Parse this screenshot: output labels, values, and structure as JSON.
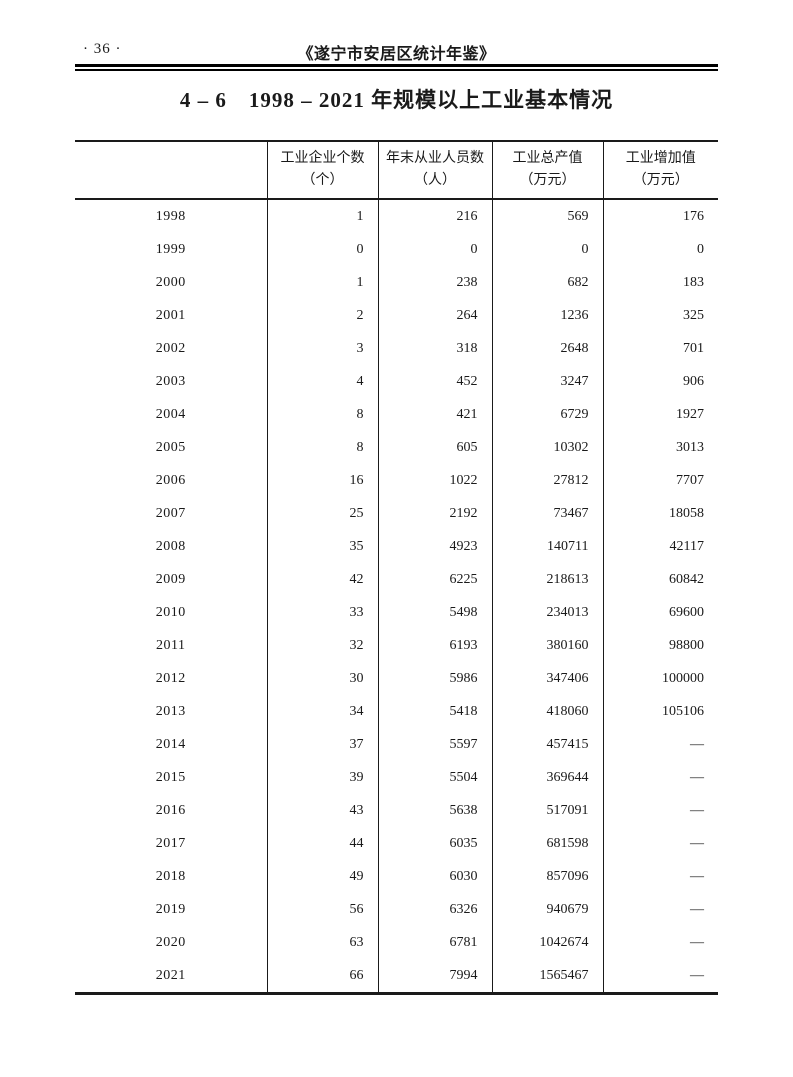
{
  "header": {
    "page_number": "· 36 ·",
    "book_title": "《遂宁市安居区统计年鉴》"
  },
  "title": "4 – 6　1998 – 2021 年规模以上工业基本情况",
  "table": {
    "year_column_header": "",
    "columns": [
      {
        "label": "工业企业个数",
        "unit": "（个）"
      },
      {
        "label": "年末从业人员数",
        "unit": "（人）"
      },
      {
        "label": "工业总产值",
        "unit": "（万元）"
      },
      {
        "label": "工业增加值",
        "unit": "（万元）"
      }
    ],
    "rows": [
      {
        "year": "1998",
        "values": [
          "1",
          "216",
          "569",
          "176"
        ]
      },
      {
        "year": "1999",
        "values": [
          "0",
          "0",
          "0",
          "0"
        ]
      },
      {
        "year": "2000",
        "values": [
          "1",
          "238",
          "682",
          "183"
        ]
      },
      {
        "year": "2001",
        "values": [
          "2",
          "264",
          "1236",
          "325"
        ]
      },
      {
        "year": "2002",
        "values": [
          "3",
          "318",
          "2648",
          "701"
        ]
      },
      {
        "year": "2003",
        "values": [
          "4",
          "452",
          "3247",
          "906"
        ]
      },
      {
        "year": "2004",
        "values": [
          "8",
          "421",
          "6729",
          "1927"
        ]
      },
      {
        "year": "2005",
        "values": [
          "8",
          "605",
          "10302",
          "3013"
        ]
      },
      {
        "year": "2006",
        "values": [
          "16",
          "1022",
          "27812",
          "7707"
        ]
      },
      {
        "year": "2007",
        "values": [
          "25",
          "2192",
          "73467",
          "18058"
        ]
      },
      {
        "year": "2008",
        "values": [
          "35",
          "4923",
          "140711",
          "42117"
        ]
      },
      {
        "year": "2009",
        "values": [
          "42",
          "6225",
          "218613",
          "60842"
        ]
      },
      {
        "year": "2010",
        "values": [
          "33",
          "5498",
          "234013",
          "69600"
        ]
      },
      {
        "year": "2011",
        "values": [
          "32",
          "6193",
          "380160",
          "98800"
        ]
      },
      {
        "year": "2012",
        "values": [
          "30",
          "5986",
          "347406",
          "100000"
        ]
      },
      {
        "year": "2013",
        "values": [
          "34",
          "5418",
          "418060",
          "105106"
        ]
      },
      {
        "year": "2014",
        "values": [
          "37",
          "5597",
          "457415",
          "—"
        ]
      },
      {
        "year": "2015",
        "values": [
          "39",
          "5504",
          "369644",
          "—"
        ]
      },
      {
        "year": "2016",
        "values": [
          "43",
          "5638",
          "517091",
          "—"
        ]
      },
      {
        "year": "2017",
        "values": [
          "44",
          "6035",
          "681598",
          "—"
        ]
      },
      {
        "year": "2018",
        "values": [
          "49",
          "6030",
          "857096",
          "—"
        ]
      },
      {
        "year": "2019",
        "values": [
          "56",
          "6326",
          "940679",
          "—"
        ]
      },
      {
        "year": "2020",
        "values": [
          "63",
          "6781",
          "1042674",
          "—"
        ]
      },
      {
        "year": "2021",
        "values": [
          "66",
          "7994",
          "1565467",
          "—"
        ]
      }
    ]
  }
}
